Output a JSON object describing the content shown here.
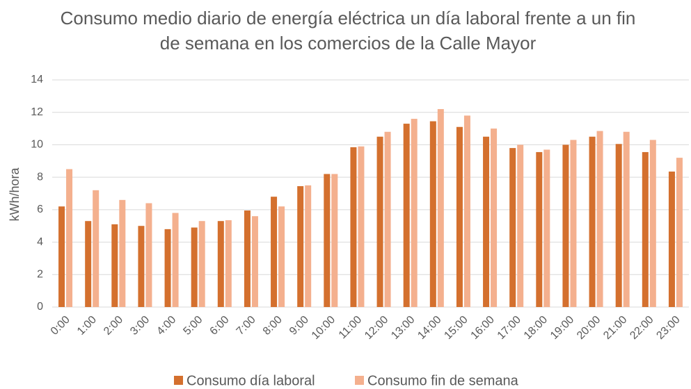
{
  "chart_data": {
    "type": "bar",
    "title": "Consumo medio diario de energía eléctrica un día laboral frente a un fin de semana en los comercios de la Calle Mayor",
    "y_label": "kWh/hora",
    "categories": [
      "0:00",
      "1:00",
      "2:00",
      "3:00",
      "4:00",
      "5:00",
      "6:00",
      "7:00",
      "8:00",
      "9:00",
      "10:00",
      "11:00",
      "12:00",
      "13:00",
      "14:00",
      "15:00",
      "16:00",
      "17:00",
      "18:00",
      "19:00",
      "20:00",
      "21:00",
      "22:00",
      "23:00"
    ],
    "series": [
      {
        "name": "Consumo día laboral",
        "color": "#d4702e",
        "values": [
          6.2,
          5.3,
          5.1,
          5.0,
          4.8,
          4.9,
          5.3,
          5.95,
          6.8,
          7.45,
          8.2,
          9.85,
          10.5,
          11.3,
          11.45,
          11.1,
          10.5,
          9.8,
          9.55,
          10.0,
          10.5,
          10.05,
          9.55,
          8.35
        ]
      },
      {
        "name": "Consumo fin de semana",
        "color": "#f4b08e",
        "values": [
          8.5,
          7.2,
          6.6,
          6.4,
          5.8,
          5.3,
          5.35,
          5.6,
          6.2,
          7.5,
          8.2,
          9.9,
          10.8,
          11.6,
          12.2,
          11.8,
          11.0,
          10.0,
          9.7,
          10.3,
          10.85,
          10.8,
          10.3,
          9.2
        ]
      }
    ],
    "ylim": [
      0,
      14
    ],
    "yticks": [
      0,
      2,
      4,
      6,
      8,
      10,
      12,
      14
    ],
    "grid": true,
    "legend": "bottom"
  }
}
